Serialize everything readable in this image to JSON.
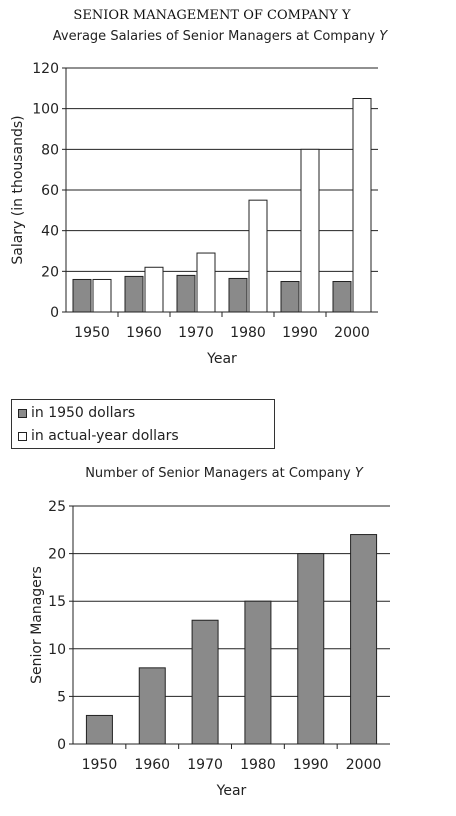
{
  "page_title": "SENIOR MANAGEMENT OF COMPANY Y",
  "colors": {
    "dark_bar": "#8a8a8a",
    "light_bar": "#ffffff",
    "line": "#222222"
  },
  "chart_data": [
    {
      "type": "bar",
      "title": "Average Salaries of Senior Managers at Company Y",
      "xlabel": "Year",
      "ylabel": "Salary (in thousands)",
      "categories": [
        "1950",
        "1960",
        "1970",
        "1980",
        "1990",
        "2000"
      ],
      "ylim": [
        0,
        120
      ],
      "yticks": [
        0,
        20,
        40,
        60,
        80,
        100,
        120
      ],
      "grid": true,
      "series": [
        {
          "name": "in 1950 dollars",
          "values": [
            16,
            17.5,
            18,
            16.5,
            15,
            15
          ]
        },
        {
          "name": "in actual-year dollars",
          "values": [
            16,
            22,
            29,
            55,
            80,
            105
          ]
        }
      ],
      "legend": "below"
    },
    {
      "type": "bar",
      "title": "Number of Senior Managers at Company Y",
      "xlabel": "Year",
      "ylabel": "Senior Managers",
      "categories": [
        "1950",
        "1960",
        "1970",
        "1980",
        "1990",
        "2000"
      ],
      "ylim": [
        0,
        25
      ],
      "yticks": [
        0,
        5,
        10,
        15,
        20,
        25
      ],
      "grid": true,
      "values": [
        3,
        8,
        13,
        15,
        20,
        22
      ]
    }
  ]
}
